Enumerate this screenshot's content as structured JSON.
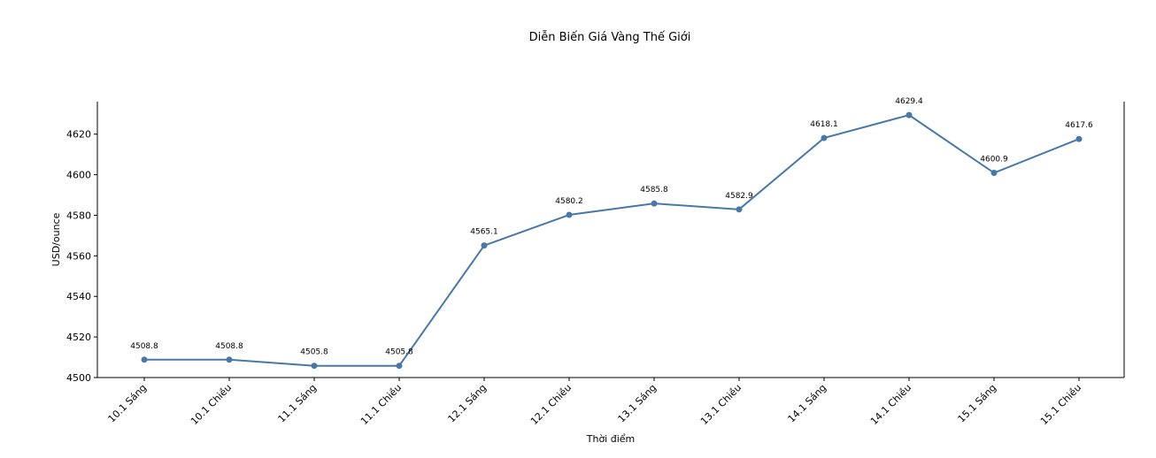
{
  "chart_data": {
    "type": "line",
    "title": "Diễn Biến Giá Vàng Thế Giới",
    "xlabel": "Thời điểm",
    "ylabel": "USD/ounce",
    "categories": [
      "10.1 Sáng",
      "10.1 Chiều",
      "11.1 Sáng",
      "11.1 Chiều",
      "12.1 Sáng",
      "12.1 Chiều",
      "13.1 Sáng",
      "13.1 Chiều",
      "14.1 Sáng",
      "14.1 Chiều",
      "15.1 Sáng",
      "15.1 Chiều"
    ],
    "series": [
      {
        "values": [
          4508.8,
          4508.8,
          4505.8,
          4505.8,
          4565.1,
          4580.2,
          4585.8,
          4582.9,
          4618.1,
          4629.4,
          4600.9,
          4617.6
        ],
        "data_labels": [
          "4508.8",
          "4508.8",
          "4505.8",
          "4505.8",
          "4565.1",
          "4580.2",
          "4585.8",
          "4582.9",
          "4618.1",
          "4629.4",
          "4600.9",
          "4617.6"
        ],
        "color": "#4878a8"
      }
    ],
    "ylim": [
      4500,
      4636
    ],
    "yticks": [
      4500,
      4520,
      4540,
      4560,
      4580,
      4600,
      4620
    ],
    "ytick_labels": [
      "4500",
      "4520",
      "4540",
      "4560",
      "4580",
      "4600",
      "4620"
    ],
    "grid": false,
    "legend": "none"
  }
}
